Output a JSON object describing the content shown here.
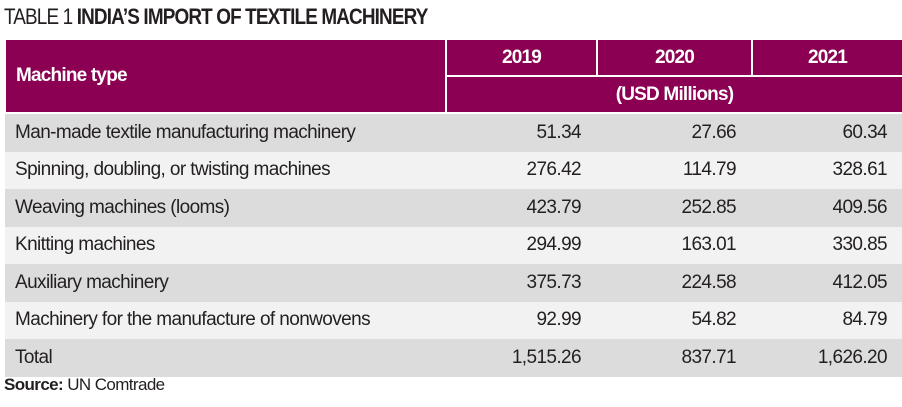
{
  "title": {
    "label": "TABLE 1",
    "text": "INDIA’S IMPORT OF TEXTILE MACHINERY"
  },
  "colors": {
    "header": "#8b0052",
    "row_dark": "#dcdcdc",
    "row_light": "#f2f2f2"
  },
  "table": {
    "first_header": "Machine type",
    "years": [
      "2019",
      "2020",
      "2021"
    ],
    "unit": "(USD Millions)",
    "rows": [
      {
        "name": "Man-made textile manufacturing machinery",
        "values": [
          "51.34",
          "27.66",
          "60.34"
        ]
      },
      {
        "name": "Spinning, doubling, or twisting machines",
        "values": [
          "276.42",
          "114.79",
          "328.61"
        ]
      },
      {
        "name": "Weaving machines (looms)",
        "values": [
          "423.79",
          "252.85",
          "409.56"
        ]
      },
      {
        "name": "Knitting machines",
        "values": [
          "294.99",
          "163.01",
          "330.85"
        ]
      },
      {
        "name": "Auxiliary machinery",
        "values": [
          "375.73",
          "224.58",
          "412.05"
        ]
      },
      {
        "name": "Machinery for the manufacture of nonwovens",
        "values": [
          "92.99",
          "54.82",
          "84.79"
        ]
      },
      {
        "name": "Total",
        "values": [
          "1,515.26",
          "837.71",
          "1,626.20"
        ]
      }
    ]
  },
  "source": {
    "label": "Source:",
    "text": "UN Comtrade"
  }
}
